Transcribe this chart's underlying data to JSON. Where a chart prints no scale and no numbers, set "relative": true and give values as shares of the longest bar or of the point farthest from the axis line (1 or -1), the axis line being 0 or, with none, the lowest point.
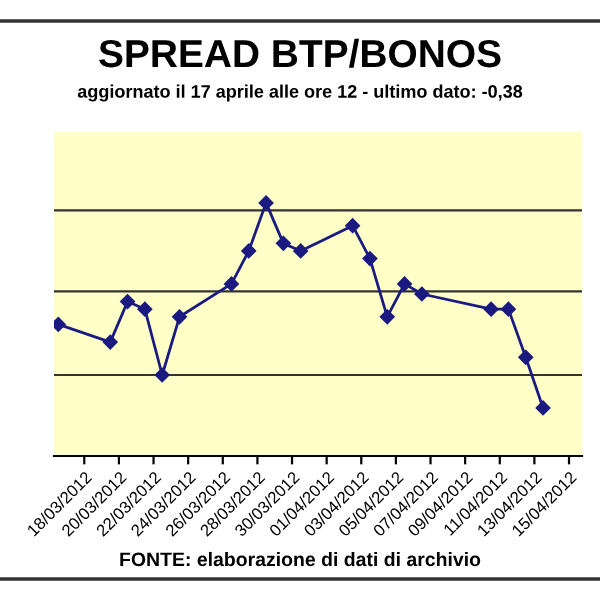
{
  "chart_data": {
    "type": "line",
    "title": "SPREAD BTP/BONOS",
    "subtitle": "aggiornato il 17 aprile alle ore 12 - ultimo dato: -0,38",
    "annotations": [
      "FONTE: elaborazione di dati di archivio"
    ],
    "relative": true,
    "x": [
      "2012-03-16T12:00",
      "2012-03-19T12:00",
      "2012-03-20T12:00",
      "2012-03-21T12:00",
      "2012-03-22T12:00",
      "2012-03-23T12:00",
      "2012-03-26T12:00",
      "2012-03-27T12:00",
      "2012-03-28T12:00",
      "2012-03-29T12:00",
      "2012-03-30T12:00",
      "2012-04-02T12:00",
      "2012-04-03T12:00",
      "2012-04-04T12:00",
      "2012-04-05T12:00",
      "2012-04-06T12:00",
      "2012-04-10T12:00",
      "2012-04-11T12:00",
      "2012-04-12T12:00",
      "2012-04-13T12:00"
    ],
    "series": [
      {
        "color": "#1a1a80",
        "values": [
          0.52,
          0.45,
          0.61,
          0.58,
          0.32,
          0.55,
          0.68,
          0.81,
          1,
          0.84,
          0.81,
          0.91,
          0.78,
          0.55,
          0.68,
          0.64,
          0.58,
          0.58,
          0.39,
          0.19
        ]
      }
    ],
    "xlim": [
      "2012-03-16T06:00",
      "2012-04-15T18:00"
    ],
    "xticks": [
      {
        "value": "2012-03-18",
        "label": "18/03/2012"
      },
      {
        "value": "2012-03-20",
        "label": "20/03/2012"
      },
      {
        "value": "2012-03-22",
        "label": "22/03/2012"
      },
      {
        "value": "2012-03-24",
        "label": "24/03/2012"
      },
      {
        "value": "2012-03-26",
        "label": "26/03/2012"
      },
      {
        "value": "2012-03-28",
        "label": "28/03/2012"
      },
      {
        "value": "2012-03-30",
        "label": "30/03/2012"
      },
      {
        "value": "2012-04-01",
        "label": "01/04/2012"
      },
      {
        "value": "2012-04-03",
        "label": "03/04/2012"
      },
      {
        "value": "2012-04-05",
        "label": "05/04/2012"
      },
      {
        "value": "2012-04-07",
        "label": "07/04/2012"
      },
      {
        "value": "2012-04-09",
        "label": "09/04/2012"
      },
      {
        "value": "2012-04-11",
        "label": "11/04/2012"
      },
      {
        "value": "2012-04-13",
        "label": "13/04/2012"
      },
      {
        "value": "2012-04-15",
        "label": "15/04/2012"
      }
    ],
    "ref_lines": [
      {
        "axis": "y",
        "value": 0.32,
        "color": "#333333"
      },
      {
        "axis": "y",
        "value": 0.65,
        "color": "#333333"
      },
      {
        "axis": "y",
        "value": 0.97,
        "color": "#333333"
      }
    ],
    "marker": "diamond",
    "line_style": "solid",
    "legend": false,
    "tick_labels": "x"
  }
}
